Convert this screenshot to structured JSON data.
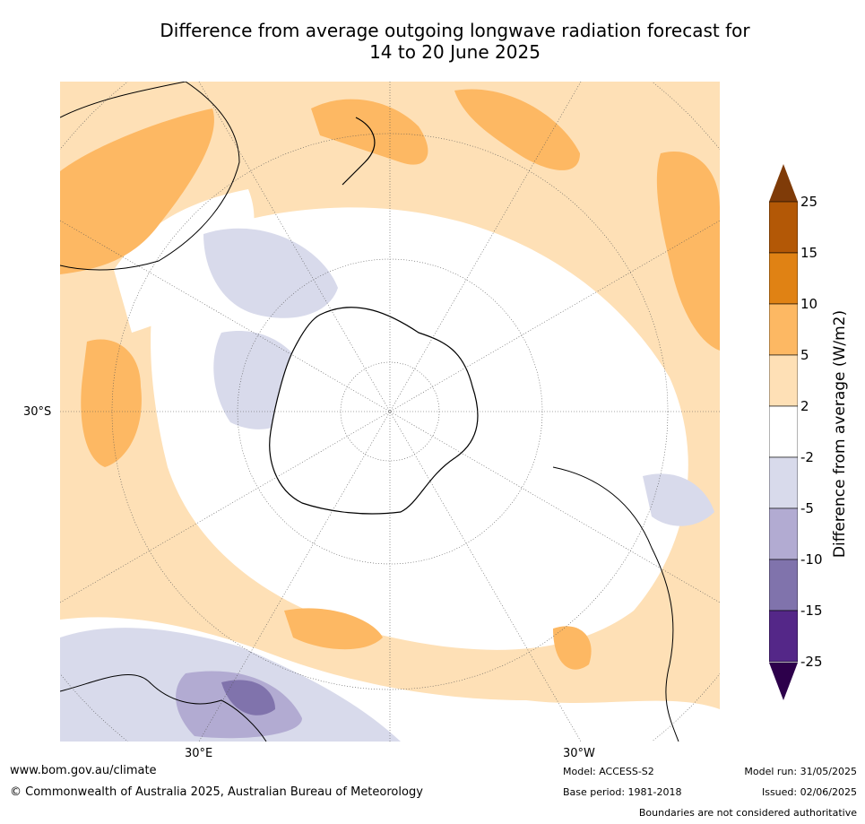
{
  "title_line1": "Difference from average outgoing longwave radiation forecast for",
  "title_line2": "14 to 20 June 2025",
  "map": {
    "lat_label": "30°S",
    "lon_labels": [
      "30°E",
      "30°W"
    ]
  },
  "colorbar": {
    "label": "Difference from average (W/m2)",
    "ticks": [
      "25",
      "15",
      "10",
      "5",
      "2",
      "-2",
      "-5",
      "-10",
      "-15",
      "-25"
    ],
    "colors": [
      "#7f3b08",
      "#b35806",
      "#e08214",
      "#fdb863",
      "#fee0b6",
      "#ffffff",
      "#d8daeb",
      "#b2abd2",
      "#8073ac",
      "#542788",
      "#2d004b"
    ]
  },
  "footer": {
    "website": "www.bom.gov.au/climate",
    "copyright": "© Commonwealth of Australia 2025, Australian Bureau of Meteorology",
    "model": "Model: ACCESS-S2",
    "base_period": "Base period: 1981-2018",
    "model_run": "Model run: 31/05/2025",
    "issued": "Issued: 02/06/2025",
    "disclaimer": "Boundaries are not considered authoritative"
  }
}
